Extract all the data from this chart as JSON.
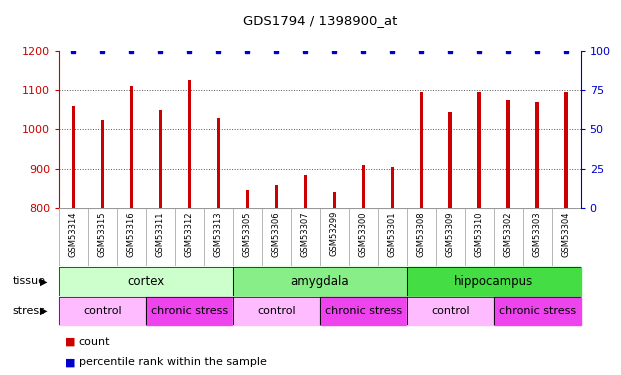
{
  "title": "GDS1794 / 1398900_at",
  "samples": [
    "GSM53314",
    "GSM53315",
    "GSM53316",
    "GSM53311",
    "GSM53312",
    "GSM53313",
    "GSM53305",
    "GSM53306",
    "GSM53307",
    "GSM53299",
    "GSM53300",
    "GSM53301",
    "GSM53308",
    "GSM53309",
    "GSM53310",
    "GSM53302",
    "GSM53303",
    "GSM53304"
  ],
  "counts": [
    1060,
    1025,
    1110,
    1050,
    1125,
    1030,
    845,
    860,
    885,
    840,
    910,
    905,
    1095,
    1045,
    1095,
    1075,
    1070,
    1095
  ],
  "percentiles": [
    100,
    100,
    100,
    100,
    100,
    100,
    100,
    100,
    100,
    100,
    100,
    100,
    100,
    100,
    100,
    100,
    100,
    100
  ],
  "ylim_left": [
    800,
    1200
  ],
  "ylim_right": [
    0,
    100
  ],
  "yticks_left": [
    800,
    900,
    1000,
    1100,
    1200
  ],
  "yticks_right": [
    0,
    25,
    50,
    75,
    100
  ],
  "bar_color": "#cc0000",
  "dot_color": "#0000cc",
  "tissue_groups": [
    {
      "label": "cortex",
      "start": 0,
      "end": 6,
      "color": "#ccffcc"
    },
    {
      "label": "amygdala",
      "start": 6,
      "end": 12,
      "color": "#88ee88"
    },
    {
      "label": "hippocampus",
      "start": 12,
      "end": 18,
      "color": "#44dd44"
    }
  ],
  "stress_groups": [
    {
      "label": "control",
      "start": 0,
      "end": 3,
      "color": "#ffbbff"
    },
    {
      "label": "chronic stress",
      "start": 3,
      "end": 6,
      "color": "#ee44ee"
    },
    {
      "label": "control",
      "start": 6,
      "end": 9,
      "color": "#ffbbff"
    },
    {
      "label": "chronic stress",
      "start": 9,
      "end": 12,
      "color": "#ee44ee"
    },
    {
      "label": "control",
      "start": 12,
      "end": 15,
      "color": "#ffbbff"
    },
    {
      "label": "chronic stress",
      "start": 15,
      "end": 18,
      "color": "#ee44ee"
    }
  ],
  "tissue_label": "tissue",
  "stress_label": "stress",
  "legend_count_label": "count",
  "legend_pct_label": "percentile rank within the sample",
  "bg_color": "#ffffff",
  "plot_bg": "#ffffff",
  "grid_color": "#555555",
  "xticklabel_bg": "#dddddd",
  "bar_width": 0.12
}
